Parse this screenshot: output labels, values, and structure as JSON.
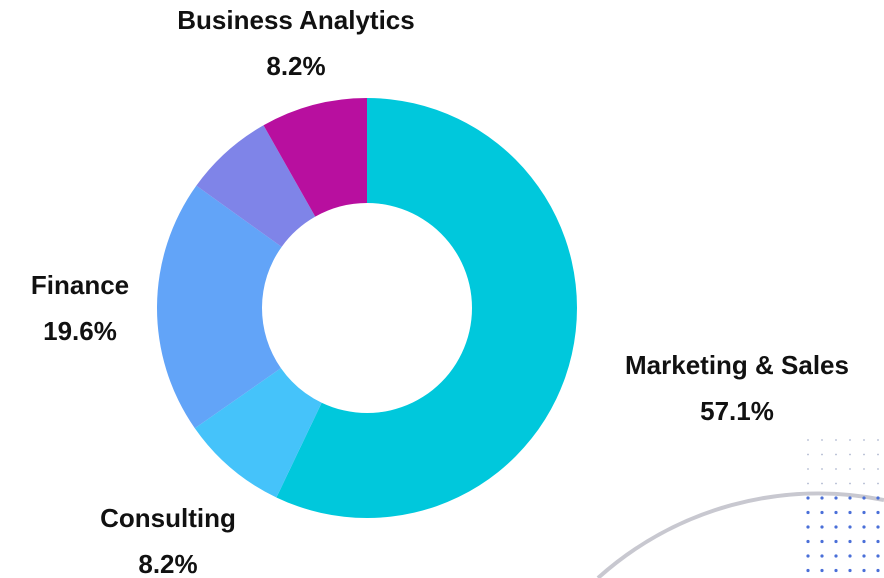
{
  "chart_data": {
    "type": "donut",
    "categories": [
      "Marketing & Sales",
      "Consulting",
      "Finance",
      null,
      "Business Analytics"
    ],
    "values": [
      57.1,
      8.2,
      19.6,
      6.9,
      8.2
    ],
    "value_labels": [
      "57.1%",
      "8.2%",
      "19.6%",
      null,
      "8.2%"
    ],
    "colors": [
      "#00c8dc",
      "#45c3fa",
      "#62a4f8",
      "#7f84e8",
      "#b80f9f"
    ]
  }
}
